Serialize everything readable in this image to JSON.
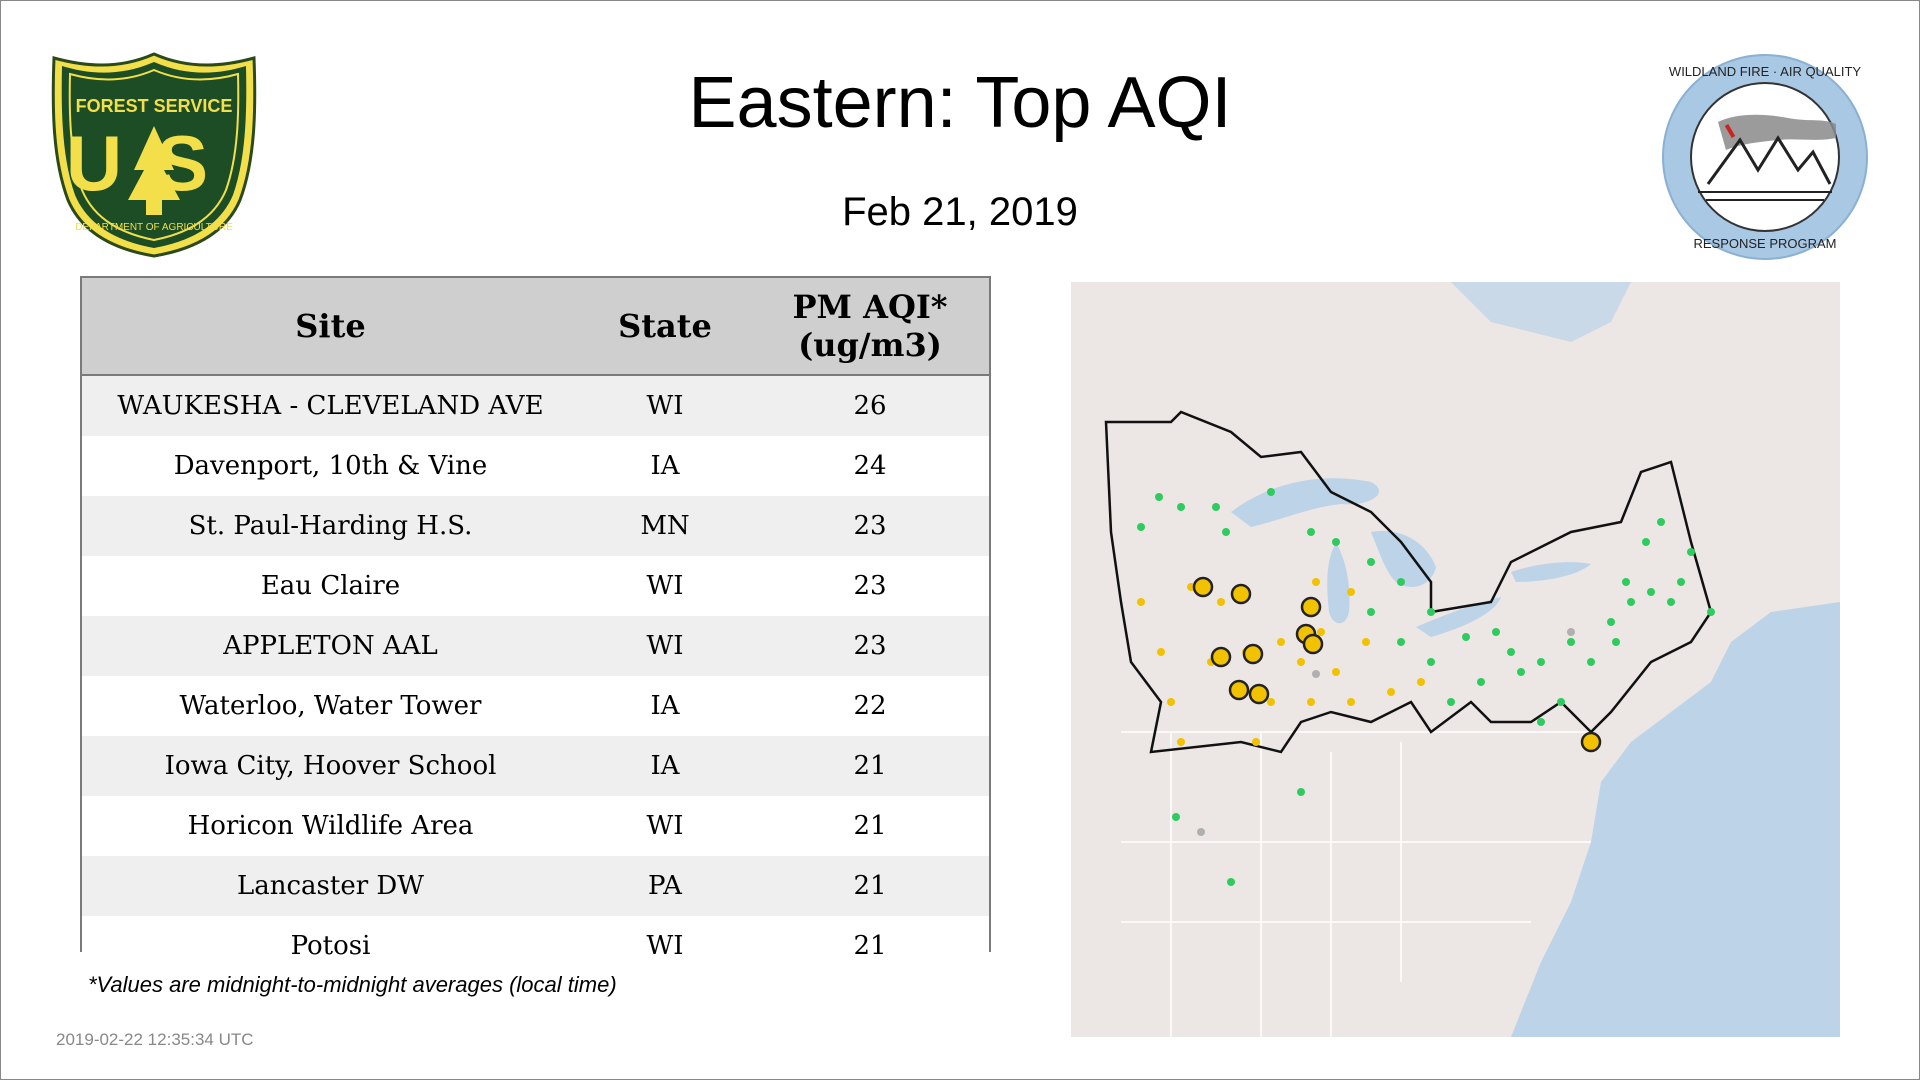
{
  "title": "Eastern: Top AQI",
  "date": "Feb 21, 2019",
  "logos": {
    "left": {
      "top_text": "FOREST SERVICE",
      "letters": "US",
      "bottom_text": "DEPARTMENT OF AGRICULTURE"
    },
    "right": {
      "top_text": "WILDLAND FIRE · AIR QUALITY",
      "bottom_text": "RESPONSE PROGRAM"
    }
  },
  "table": {
    "headers": {
      "site": "Site",
      "state": "State",
      "aqi_line1": "PM AQI*",
      "aqi_line2": "(ug/m3)"
    },
    "rows": [
      {
        "site": "WAUKESHA - CLEVELAND AVE",
        "state": "WI",
        "aqi": "26"
      },
      {
        "site": "Davenport, 10th & Vine",
        "state": "IA",
        "aqi": "24"
      },
      {
        "site": "St. Paul-Harding H.S.",
        "state": "MN",
        "aqi": "23"
      },
      {
        "site": "Eau Claire",
        "state": "WI",
        "aqi": "23"
      },
      {
        "site": "APPLETON AAL",
        "state": "WI",
        "aqi": "23"
      },
      {
        "site": "Waterloo, Water Tower",
        "state": "IA",
        "aqi": "22"
      },
      {
        "site": "Iowa City, Hoover School",
        "state": "IA",
        "aqi": "21"
      },
      {
        "site": "Horicon Wildlife Area",
        "state": "WI",
        "aqi": "21"
      },
      {
        "site": "Lancaster DW",
        "state": "PA",
        "aqi": "21"
      },
      {
        "site": "Potosi",
        "state": "WI",
        "aqi": "21"
      }
    ]
  },
  "footnote": "*Values are midnight-to-midnight averages (local time)",
  "timestamp": "2019-02-22 12:35:34 UTC",
  "colors": {
    "good": "#2ecc5f",
    "moderate": "#f2c200",
    "no_data": "#b0b0b0",
    "land": "#ece6e4",
    "water": "#b9d0e6",
    "header_bg": "#cfcfcf"
  }
}
